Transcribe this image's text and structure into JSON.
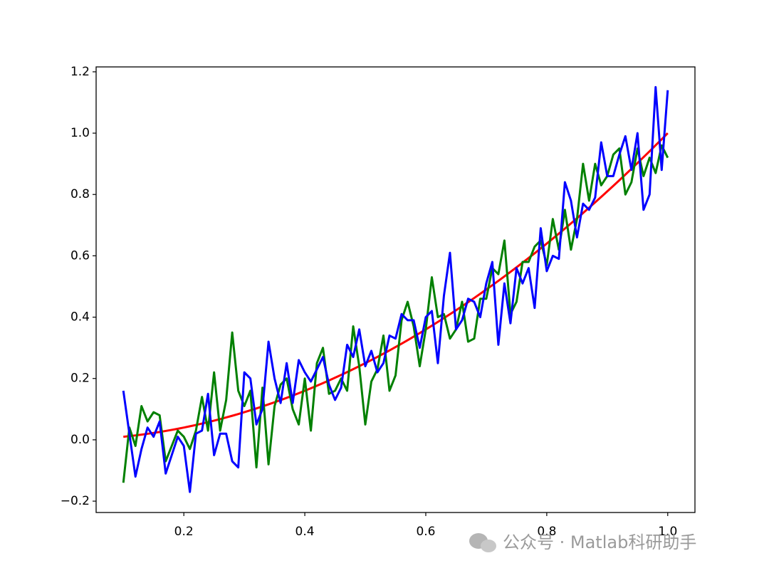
{
  "chart_data": {
    "type": "line",
    "x": [
      0.1,
      0.11,
      0.12,
      0.13,
      0.14,
      0.15,
      0.16,
      0.17,
      0.18,
      0.19,
      0.2,
      0.21,
      0.22,
      0.23,
      0.24,
      0.25,
      0.26,
      0.27,
      0.28,
      0.29,
      0.3,
      0.31,
      0.32,
      0.33,
      0.34,
      0.35,
      0.36,
      0.37,
      0.38,
      0.39,
      0.4,
      0.41,
      0.42,
      0.43,
      0.44,
      0.45,
      0.46,
      0.47,
      0.48,
      0.49,
      0.5,
      0.51,
      0.52,
      0.53,
      0.54,
      0.55,
      0.56,
      0.57,
      0.58,
      0.59,
      0.6,
      0.61,
      0.62,
      0.63,
      0.64,
      0.65,
      0.66,
      0.67,
      0.68,
      0.69,
      0.7,
      0.71,
      0.72,
      0.73,
      0.74,
      0.75,
      0.76,
      0.77,
      0.78,
      0.79,
      0.8,
      0.81,
      0.82,
      0.83,
      0.84,
      0.85,
      0.86,
      0.87,
      0.88,
      0.89,
      0.9,
      0.91,
      0.92,
      0.93,
      0.94,
      0.95,
      0.96,
      0.97,
      0.98,
      0.99,
      1.0
    ],
    "series": [
      {
        "color": "#ff0000",
        "values": [
          0.01,
          0.0121,
          0.0144,
          0.0169,
          0.0196,
          0.0225,
          0.0256,
          0.0289,
          0.0324,
          0.0361,
          0.04,
          0.0441,
          0.0484,
          0.0529,
          0.0576,
          0.0625,
          0.0676,
          0.0729,
          0.0784,
          0.0841,
          0.09,
          0.0961,
          0.1024,
          0.1089,
          0.1156,
          0.1225,
          0.1296,
          0.1369,
          0.1444,
          0.1521,
          0.16,
          0.1681,
          0.1764,
          0.1849,
          0.1936,
          0.2025,
          0.2116,
          0.2209,
          0.2304,
          0.2401,
          0.25,
          0.2601,
          0.2704,
          0.2809,
          0.2916,
          0.3025,
          0.3136,
          0.3249,
          0.3364,
          0.3481,
          0.36,
          0.3721,
          0.3844,
          0.3969,
          0.4096,
          0.4225,
          0.4356,
          0.4489,
          0.4624,
          0.4761,
          0.49,
          0.5041,
          0.5184,
          0.5329,
          0.5476,
          0.5625,
          0.5776,
          0.5929,
          0.6084,
          0.6241,
          0.64,
          0.6561,
          0.6724,
          0.6889,
          0.7056,
          0.7225,
          0.7396,
          0.7569,
          0.7744,
          0.7921,
          0.81,
          0.8281,
          0.8464,
          0.8649,
          0.8836,
          0.9025,
          0.9216,
          0.9409,
          0.9604,
          0.9801,
          1.0
        ]
      },
      {
        "color": "#008000",
        "values": [
          -0.14,
          0.04,
          -0.02,
          0.11,
          0.06,
          0.09,
          0.08,
          -0.07,
          -0.02,
          0.03,
          0.01,
          -0.03,
          0.03,
          0.14,
          0.03,
          0.22,
          0.03,
          0.13,
          0.35,
          0.16,
          0.11,
          0.16,
          -0.09,
          0.17,
          -0.08,
          0.11,
          0.18,
          0.2,
          0.1,
          0.05,
          0.2,
          0.03,
          0.25,
          0.3,
          0.15,
          0.16,
          0.2,
          0.16,
          0.37,
          0.24,
          0.05,
          0.19,
          0.23,
          0.34,
          0.16,
          0.21,
          0.39,
          0.45,
          0.37,
          0.24,
          0.36,
          0.53,
          0.4,
          0.41,
          0.33,
          0.36,
          0.45,
          0.32,
          0.33,
          0.46,
          0.46,
          0.56,
          0.54,
          0.65,
          0.41,
          0.45,
          0.58,
          0.58,
          0.63,
          0.65,
          0.57,
          0.72,
          0.62,
          0.75,
          0.62,
          0.72,
          0.9,
          0.78,
          0.9,
          0.83,
          0.86,
          0.93,
          0.95,
          0.8,
          0.84,
          0.95,
          0.86,
          0.92,
          0.87,
          0.96,
          0.92
        ]
      },
      {
        "color": "#0000ff",
        "values": [
          0.16,
          0.02,
          -0.12,
          -0.03,
          0.04,
          0.01,
          0.06,
          -0.11,
          -0.05,
          0.01,
          -0.02,
          -0.17,
          0.02,
          0.03,
          0.15,
          -0.05,
          0.02,
          0.02,
          -0.07,
          -0.09,
          0.22,
          0.2,
          0.05,
          0.1,
          0.32,
          0.2,
          0.12,
          0.25,
          0.12,
          0.26,
          0.22,
          0.19,
          0.23,
          0.27,
          0.18,
          0.13,
          0.17,
          0.31,
          0.27,
          0.36,
          0.24,
          0.29,
          0.22,
          0.25,
          0.34,
          0.33,
          0.41,
          0.39,
          0.39,
          0.3,
          0.4,
          0.42,
          0.25,
          0.47,
          0.61,
          0.36,
          0.39,
          0.46,
          0.45,
          0.4,
          0.51,
          0.58,
          0.31,
          0.51,
          0.38,
          0.56,
          0.51,
          0.56,
          0.43,
          0.69,
          0.55,
          0.6,
          0.59,
          0.84,
          0.78,
          0.66,
          0.77,
          0.75,
          0.79,
          0.97,
          0.86,
          0.86,
          0.93,
          0.99,
          0.88,
          1.0,
          0.75,
          0.8,
          1.15,
          0.88,
          1.14
        ]
      }
    ],
    "xlim": [
      0.055,
      1.045
    ],
    "ylim": [
      -0.237,
      1.216
    ],
    "xticks": [
      0.2,
      0.4,
      0.6,
      0.8,
      {
        "value": 1,
        "label": "1.0"
      }
    ],
    "yticks": [
      {
        "value": -0.2,
        "label": "−0.2"
      },
      {
        "value": 0,
        "label": "0.0"
      },
      0.2,
      0.4,
      0.6,
      0.8,
      {
        "value": 1,
        "label": "1.0"
      },
      1.2
    ],
    "watermark": "公众号 · Matlab科研助手"
  }
}
